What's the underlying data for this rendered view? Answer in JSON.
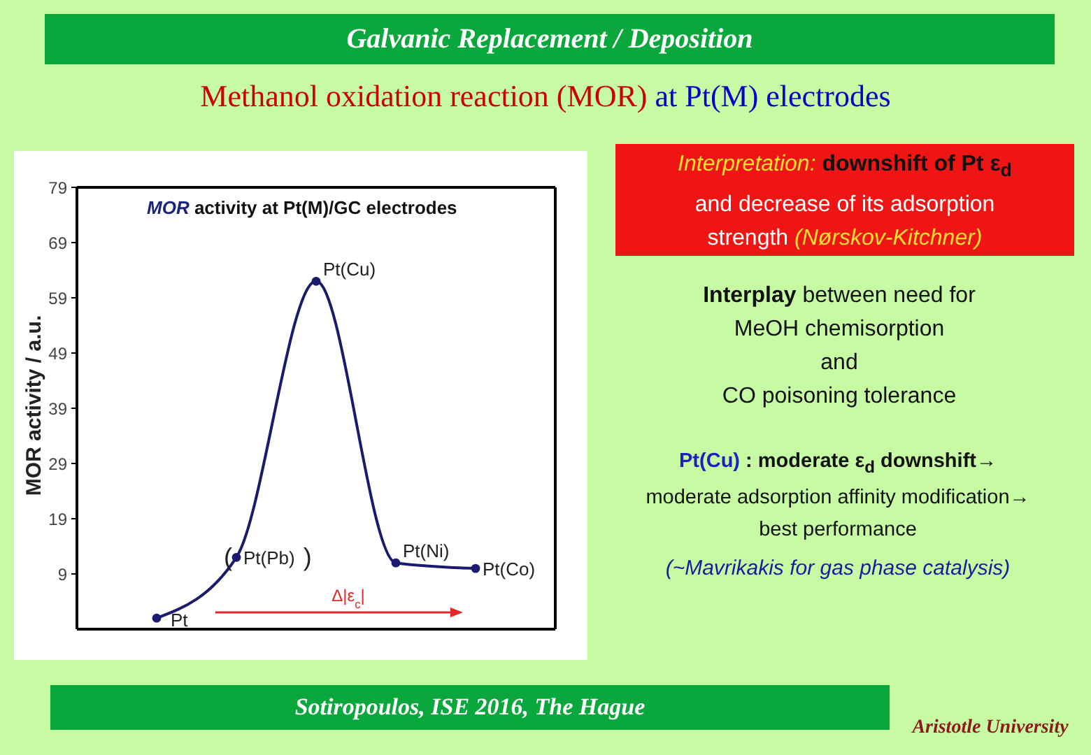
{
  "chart_data": {
    "type": "line",
    "title": "Galvanic Replacement / Deposition",
    "subtitle": "Methanol oxidation reaction (MOR) at Pt(M) electrodes",
    "xlabel": "Δ|ε$_{c}$|",
    "ylabel": "MOR activity / a.u.",
    "categories": [
      "Pt",
      "Pt(Pb)",
      "Pt(Cu)",
      "Pt(Ni)",
      "Pt(Co)"
    ],
    "values": [
      1,
      12,
      62,
      11,
      10
    ],
    "color": "#1a1a6e",
    "marker": "circle",
    "ylim": [
      -1,
      79
    ],
    "yticks": [
      9,
      19,
      29,
      39,
      49,
      59,
      69,
      79
    ],
    "tick_labels": "y",
    "annotations": [
      "MOR activity at Pt(M)/GC electrodes",
      {
        "text": "(",
        "x": "Pt(Pb)",
        "y": 12
      },
      {
        "text": ")",
        "x": "Pt(Pb)",
        "y": 12
      },
      "Interpretation: downshift of Pt ε$_{d}$\nand decrease of its adsorption\nstrength (Nørskov-Kitchner)",
      "Interplay between need for\nMeOH chemisorption\nand\nCO poisoning tolerance",
      "Pt(Cu) : moderate ε$_{d}$ downshift→\nmoderate adsorption affinity modification→\nbest performance",
      "(~Mavrikakis for gas phase catalysis)",
      "Sotiropoulos, ISE 2016, The Hague",
      "Aristotle University"
    ]
  }
}
